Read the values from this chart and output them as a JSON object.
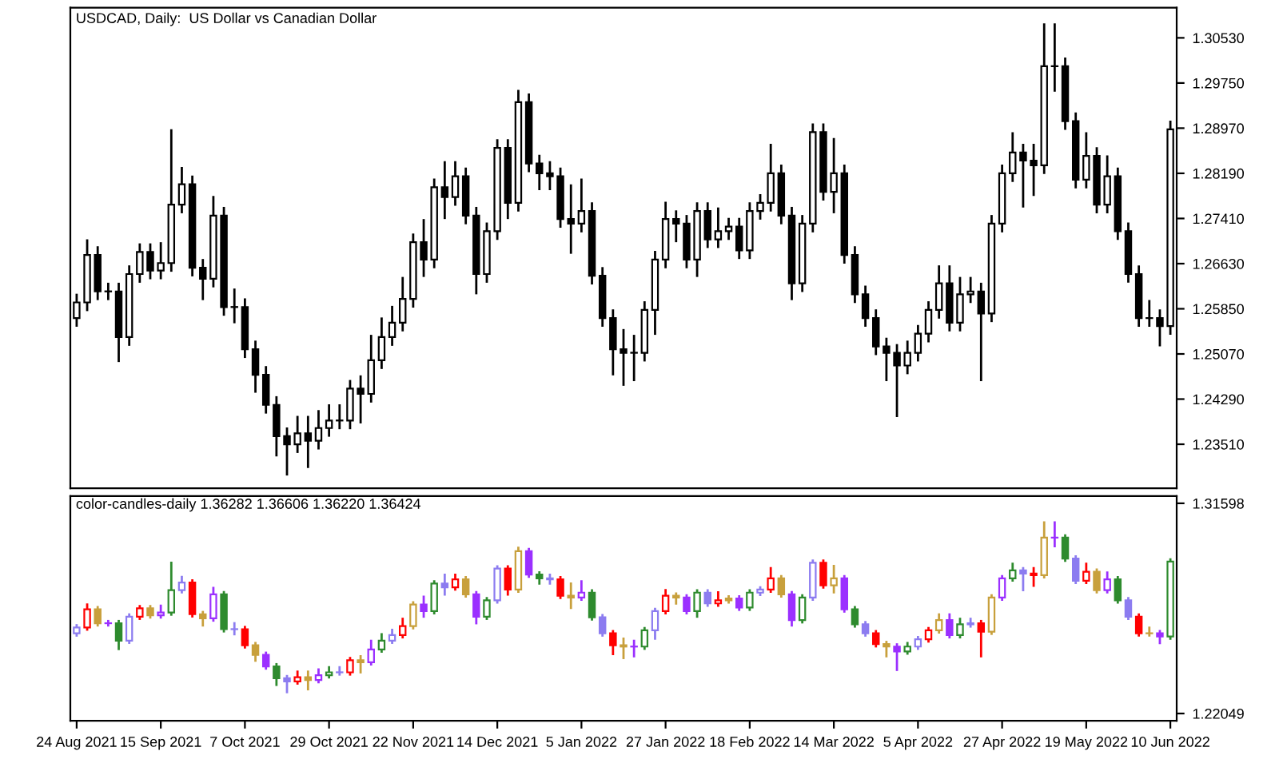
{
  "chart_data": [
    {
      "type": "candlestick",
      "title": "USDCAD, Daily:  US Dollar vs Canadian Dollar",
      "color": "#000000",
      "tick_labels": "y",
      "ohlc": [
        [
          1.2569,
          1.2611,
          1.2554,
          1.2596
        ],
        [
          1.2596,
          1.2705,
          1.2581,
          1.2678
        ],
        [
          1.2678,
          1.2693,
          1.26,
          1.2615
        ],
        [
          1.2615,
          1.263,
          1.26,
          1.2615
        ],
        [
          1.2615,
          1.263,
          1.2493,
          1.2536
        ],
        [
          1.2536,
          1.266,
          1.2521,
          1.2645
        ],
        [
          1.2645,
          1.2698,
          1.263,
          1.2683
        ],
        [
          1.2683,
          1.2698,
          1.2636,
          1.2651
        ],
        [
          1.2651,
          1.27,
          1.2636,
          1.2664
        ],
        [
          1.2664,
          1.2895,
          1.2649,
          1.2765
        ],
        [
          1.2765,
          1.283,
          1.275,
          1.28
        ],
        [
          1.28,
          1.2815,
          1.2641,
          1.2656
        ],
        [
          1.2656,
          1.2671,
          1.26,
          1.2637
        ],
        [
          1.2637,
          1.278,
          1.2622,
          1.2746
        ],
        [
          1.2746,
          1.2761,
          1.2573,
          1.2588
        ],
        [
          1.2588,
          1.262,
          1.256,
          1.2588
        ],
        [
          1.2588,
          1.2603,
          1.25,
          1.2515
        ],
        [
          1.2515,
          1.253,
          1.244,
          1.2471
        ],
        [
          1.2471,
          1.2486,
          1.2404,
          1.2419
        ],
        [
          1.2419,
          1.2434,
          1.233,
          1.2365
        ],
        [
          1.2365,
          1.238,
          1.2297,
          1.2351
        ],
        [
          1.2351,
          1.24,
          1.2336,
          1.237
        ],
        [
          1.237,
          1.24,
          1.231,
          1.2357
        ],
        [
          1.2357,
          1.241,
          1.2342,
          1.2379
        ],
        [
          1.2379,
          1.242,
          1.2364,
          1.2392
        ],
        [
          1.2392,
          1.242,
          1.2377,
          1.2392
        ],
        [
          1.2392,
          1.2462,
          1.2377,
          1.2447
        ],
        [
          1.2447,
          1.247,
          1.2387,
          1.2438
        ],
        [
          1.2438,
          1.254,
          1.2423,
          1.2496
        ],
        [
          1.2496,
          1.257,
          1.2481,
          1.2536
        ],
        [
          1.2536,
          1.259,
          1.2521,
          1.2561
        ],
        [
          1.2561,
          1.264,
          1.2546,
          1.2602
        ],
        [
          1.2602,
          1.2715,
          1.2587,
          1.27
        ],
        [
          1.27,
          1.274,
          1.264,
          1.267
        ],
        [
          1.267,
          1.281,
          1.2655,
          1.2795
        ],
        [
          1.2795,
          1.284,
          1.274,
          1.2778
        ],
        [
          1.2778,
          1.284,
          1.2763,
          1.2814
        ],
        [
          1.2814,
          1.2829,
          1.2731,
          1.2746
        ],
        [
          1.2746,
          1.2761,
          1.261,
          1.2645
        ],
        [
          1.2645,
          1.2734,
          1.263,
          1.2719
        ],
        [
          1.2719,
          1.2878,
          1.2704,
          1.2863
        ],
        [
          1.2863,
          1.2878,
          1.274,
          1.2768
        ],
        [
          1.2768,
          1.2963,
          1.2753,
          1.2942
        ],
        [
          1.2942,
          1.2957,
          1.2821,
          1.2836
        ],
        [
          1.2836,
          1.2851,
          1.279,
          1.2819
        ],
        [
          1.2819,
          1.284,
          1.279,
          1.2814
        ],
        [
          1.2814,
          1.2829,
          1.2725,
          1.274
        ],
        [
          1.274,
          1.28,
          1.268,
          1.2732
        ],
        [
          1.2732,
          1.281,
          1.2717,
          1.2754
        ],
        [
          1.2754,
          1.2769,
          1.2627,
          1.2642
        ],
        [
          1.2642,
          1.2657,
          1.2554,
          1.2569
        ],
        [
          1.2569,
          1.2584,
          1.247,
          1.2515
        ],
        [
          1.2515,
          1.255,
          1.2452,
          1.2509
        ],
        [
          1.2509,
          1.254,
          1.246,
          1.2509
        ],
        [
          1.2509,
          1.2598,
          1.2494,
          1.2583
        ],
        [
          1.2583,
          1.2685,
          1.254,
          1.267
        ],
        [
          1.267,
          1.277,
          1.2655,
          1.274
        ],
        [
          1.274,
          1.2755,
          1.27,
          1.2732
        ],
        [
          1.2732,
          1.2747,
          1.2655,
          1.267
        ],
        [
          1.267,
          1.2769,
          1.264,
          1.2754
        ],
        [
          1.2754,
          1.2769,
          1.269,
          1.2705
        ],
        [
          1.2705,
          1.276,
          1.269,
          1.2719
        ],
        [
          1.2719,
          1.2742,
          1.2704,
          1.2727
        ],
        [
          1.2727,
          1.2742,
          1.2671,
          1.2686
        ],
        [
          1.2686,
          1.2769,
          1.2671,
          1.2754
        ],
        [
          1.2754,
          1.2783,
          1.2739,
          1.2768
        ],
        [
          1.2768,
          1.287,
          1.2753,
          1.2819
        ],
        [
          1.2819,
          1.2834,
          1.2731,
          1.2746
        ],
        [
          1.2746,
          1.2761,
          1.26,
          1.2629
        ],
        [
          1.2629,
          1.2747,
          1.2614,
          1.2732
        ],
        [
          1.2732,
          1.2905,
          1.2717,
          1.289
        ],
        [
          1.289,
          1.2905,
          1.2772,
          1.2787
        ],
        [
          1.2787,
          1.288,
          1.275,
          1.2819
        ],
        [
          1.2819,
          1.2834,
          1.2663,
          1.2678
        ],
        [
          1.2678,
          1.2693,
          1.2595,
          1.261
        ],
        [
          1.261,
          1.2625,
          1.2554,
          1.2569
        ],
        [
          1.2569,
          1.2584,
          1.2505,
          1.252
        ],
        [
          1.252,
          1.2535,
          1.246,
          1.2509
        ],
        [
          1.2509,
          1.2524,
          1.2398,
          1.2487
        ],
        [
          1.2487,
          1.253,
          1.2472,
          1.2509
        ],
        [
          1.2509,
          1.2557,
          1.2494,
          1.2542
        ],
        [
          1.2542,
          1.2598,
          1.2527,
          1.2583
        ],
        [
          1.2583,
          1.266,
          1.2568,
          1.2629
        ],
        [
          1.2629,
          1.266,
          1.2546,
          1.2561
        ],
        [
          1.2561,
          1.264,
          1.2546,
          1.261
        ],
        [
          1.261,
          1.264,
          1.2595,
          1.2615
        ],
        [
          1.2615,
          1.263,
          1.246,
          1.2577
        ],
        [
          1.2577,
          1.2747,
          1.2562,
          1.2732
        ],
        [
          1.2732,
          1.2834,
          1.2717,
          1.2819
        ],
        [
          1.2819,
          1.289,
          1.2804,
          1.2855
        ],
        [
          1.2855,
          1.287,
          1.276,
          1.2841
        ],
        [
          1.2841,
          1.287,
          1.278,
          1.2833
        ],
        [
          1.2833,
          1.3078,
          1.2818,
          1.3004
        ],
        [
          1.3004,
          1.3078,
          1.296,
          1.3004
        ],
        [
          1.3004,
          1.3019,
          1.2894,
          1.2909
        ],
        [
          1.2909,
          1.2924,
          1.2793,
          1.2808
        ],
        [
          1.2808,
          1.289,
          1.2793,
          1.2849
        ],
        [
          1.2849,
          1.2864,
          1.275,
          1.2765
        ],
        [
          1.2765,
          1.285,
          1.275,
          1.2814
        ],
        [
          1.2814,
          1.2829,
          1.2704,
          1.2719
        ],
        [
          1.2719,
          1.2734,
          1.263,
          1.2645
        ],
        [
          1.2645,
          1.266,
          1.2554,
          1.2569
        ],
        [
          1.2569,
          1.26,
          1.2554,
          1.2569
        ],
        [
          1.2569,
          1.2584,
          1.252,
          1.2555
        ],
        [
          1.2555,
          1.291,
          1.254,
          1.2895
        ]
      ],
      "ylim": [
        1.2275,
        1.3105
      ],
      "yticks": [
        {
          "value": 1.2351,
          "label": "1.23510"
        },
        {
          "value": 1.2429,
          "label": "1.24290"
        },
        {
          "value": 1.2507,
          "label": "1.25070"
        },
        {
          "value": 1.2585,
          "label": "1.25850"
        },
        {
          "value": 1.2663,
          "label": "1.26630"
        },
        {
          "value": 1.2741,
          "label": "1.27410"
        },
        {
          "value": 1.2819,
          "label": "1.28190"
        },
        {
          "value": 1.2897,
          "label": "1.28970"
        },
        {
          "value": 1.2975,
          "label": "1.29750"
        },
        {
          "value": 1.3053,
          "label": "1.30530"
        }
      ]
    },
    {
      "type": "candlestick",
      "title": "color-candles-daily 1.36282 1.36606 1.36220 1.36424",
      "categories": [
        "24 Aug 2021",
        null,
        null,
        null,
        null,
        null,
        null,
        null,
        "15 Sep 2021",
        null,
        null,
        null,
        null,
        null,
        null,
        null,
        "7 Oct 2021",
        null,
        null,
        null,
        null,
        null,
        null,
        null,
        "29 Oct 2021",
        null,
        null,
        null,
        null,
        null,
        null,
        null,
        "22 Nov 2021",
        null,
        null,
        null,
        null,
        null,
        null,
        null,
        "14 Dec 2021",
        null,
        null,
        null,
        null,
        null,
        null,
        null,
        "5 Jan 2022",
        null,
        null,
        null,
        null,
        null,
        null,
        null,
        "27 Jan 2022",
        null,
        null,
        null,
        null,
        null,
        null,
        null,
        "18 Feb 2022",
        null,
        null,
        null,
        null,
        null,
        null,
        null,
        "14 Mar 2022",
        null,
        null,
        null,
        null,
        null,
        null,
        null,
        "5 Apr 2022",
        null,
        null,
        null,
        null,
        null,
        null,
        null,
        "27 Apr 2022",
        null,
        null,
        null,
        null,
        null,
        null,
        null,
        "19 May 2022",
        null,
        null,
        null,
        null,
        null,
        null,
        null,
        "10 Jun 2022"
      ],
      "ohlc": [
        [
          1.2569,
          1.2611,
          1.2554,
          1.2596
        ],
        [
          1.2596,
          1.2705,
          1.2581,
          1.2678
        ],
        [
          1.2678,
          1.2693,
          1.26,
          1.2615
        ],
        [
          1.2615,
          1.263,
          1.26,
          1.2615
        ],
        [
          1.2615,
          1.263,
          1.2493,
          1.2536
        ],
        [
          1.2536,
          1.266,
          1.2521,
          1.2645
        ],
        [
          1.2645,
          1.2698,
          1.263,
          1.2683
        ],
        [
          1.2683,
          1.2698,
          1.2636,
          1.2651
        ],
        [
          1.2651,
          1.27,
          1.2636,
          1.2664
        ],
        [
          1.2664,
          1.2895,
          1.2649,
          1.2765
        ],
        [
          1.2765,
          1.283,
          1.275,
          1.28
        ],
        [
          1.28,
          1.2815,
          1.2641,
          1.2656
        ],
        [
          1.2656,
          1.2671,
          1.26,
          1.2637
        ],
        [
          1.2637,
          1.278,
          1.2622,
          1.2746
        ],
        [
          1.2746,
          1.2761,
          1.2573,
          1.2588
        ],
        [
          1.2588,
          1.262,
          1.256,
          1.2588
        ],
        [
          1.2588,
          1.2603,
          1.25,
          1.2515
        ],
        [
          1.2515,
          1.253,
          1.244,
          1.2471
        ],
        [
          1.2471,
          1.2486,
          1.2404,
          1.2419
        ],
        [
          1.2419,
          1.2434,
          1.233,
          1.2365
        ],
        [
          1.2365,
          1.238,
          1.2297,
          1.2351
        ],
        [
          1.2351,
          1.24,
          1.2336,
          1.237
        ],
        [
          1.237,
          1.24,
          1.231,
          1.2357
        ],
        [
          1.2357,
          1.241,
          1.2342,
          1.2379
        ],
        [
          1.2379,
          1.242,
          1.2364,
          1.2392
        ],
        [
          1.2392,
          1.242,
          1.2377,
          1.2392
        ],
        [
          1.2392,
          1.2462,
          1.2377,
          1.2447
        ],
        [
          1.2447,
          1.247,
          1.2387,
          1.2438
        ],
        [
          1.2438,
          1.254,
          1.2423,
          1.2496
        ],
        [
          1.2496,
          1.257,
          1.2481,
          1.2536
        ],
        [
          1.2536,
          1.259,
          1.2521,
          1.2561
        ],
        [
          1.2561,
          1.264,
          1.2546,
          1.2602
        ],
        [
          1.2602,
          1.2715,
          1.2587,
          1.27
        ],
        [
          1.27,
          1.274,
          1.264,
          1.267
        ],
        [
          1.267,
          1.281,
          1.2655,
          1.2795
        ],
        [
          1.2795,
          1.284,
          1.274,
          1.2778
        ],
        [
          1.2778,
          1.284,
          1.2763,
          1.2814
        ],
        [
          1.2814,
          1.2829,
          1.2731,
          1.2746
        ],
        [
          1.2746,
          1.2761,
          1.261,
          1.2645
        ],
        [
          1.2645,
          1.2734,
          1.263,
          1.2719
        ],
        [
          1.2719,
          1.2878,
          1.2704,
          1.2863
        ],
        [
          1.2863,
          1.2878,
          1.274,
          1.2768
        ],
        [
          1.2768,
          1.2963,
          1.2753,
          1.2942
        ],
        [
          1.2942,
          1.2957,
          1.2821,
          1.2836
        ],
        [
          1.2836,
          1.2851,
          1.279,
          1.2819
        ],
        [
          1.2819,
          1.284,
          1.279,
          1.2814
        ],
        [
          1.2814,
          1.2829,
          1.2725,
          1.274
        ],
        [
          1.274,
          1.28,
          1.268,
          1.2732
        ],
        [
          1.2732,
          1.281,
          1.2717,
          1.2754
        ],
        [
          1.2754,
          1.2769,
          1.2627,
          1.2642
        ],
        [
          1.2642,
          1.2657,
          1.2554,
          1.2569
        ],
        [
          1.2569,
          1.2584,
          1.247,
          1.2515
        ],
        [
          1.2515,
          1.255,
          1.2452,
          1.2509
        ],
        [
          1.2509,
          1.254,
          1.246,
          1.2509
        ],
        [
          1.2509,
          1.2598,
          1.2494,
          1.2583
        ],
        [
          1.2583,
          1.2685,
          1.254,
          1.267
        ],
        [
          1.267,
          1.277,
          1.2655,
          1.274
        ],
        [
          1.274,
          1.2755,
          1.27,
          1.2732
        ],
        [
          1.2732,
          1.2747,
          1.2655,
          1.267
        ],
        [
          1.267,
          1.2769,
          1.264,
          1.2754
        ],
        [
          1.2754,
          1.2769,
          1.269,
          1.2705
        ],
        [
          1.2705,
          1.276,
          1.269,
          1.2719
        ],
        [
          1.2719,
          1.2742,
          1.2704,
          1.2727
        ],
        [
          1.2727,
          1.2742,
          1.2671,
          1.2686
        ],
        [
          1.2686,
          1.2769,
          1.2671,
          1.2754
        ],
        [
          1.2754,
          1.2783,
          1.2739,
          1.2768
        ],
        [
          1.2768,
          1.287,
          1.2753,
          1.2819
        ],
        [
          1.2819,
          1.2834,
          1.2731,
          1.2746
        ],
        [
          1.2746,
          1.2761,
          1.26,
          1.2629
        ],
        [
          1.2629,
          1.2747,
          1.2614,
          1.2732
        ],
        [
          1.2732,
          1.2905,
          1.2717,
          1.289
        ],
        [
          1.289,
          1.2905,
          1.2772,
          1.2787
        ],
        [
          1.2787,
          1.288,
          1.275,
          1.2819
        ],
        [
          1.2819,
          1.2834,
          1.2663,
          1.2678
        ],
        [
          1.2678,
          1.2693,
          1.2595,
          1.261
        ],
        [
          1.261,
          1.2625,
          1.2554,
          1.2569
        ],
        [
          1.2569,
          1.2584,
          1.2505,
          1.252
        ],
        [
          1.252,
          1.2535,
          1.246,
          1.2509
        ],
        [
          1.2509,
          1.2524,
          1.2398,
          1.2487
        ],
        [
          1.2487,
          1.253,
          1.2472,
          1.2509
        ],
        [
          1.2509,
          1.2557,
          1.2494,
          1.2542
        ],
        [
          1.2542,
          1.2598,
          1.2527,
          1.2583
        ],
        [
          1.2583,
          1.266,
          1.2568,
          1.2629
        ],
        [
          1.2629,
          1.266,
          1.2546,
          1.2561
        ],
        [
          1.2561,
          1.264,
          1.2546,
          1.261
        ],
        [
          1.261,
          1.264,
          1.2595,
          1.2615
        ],
        [
          1.2615,
          1.263,
          1.246,
          1.2577
        ],
        [
          1.2577,
          1.2747,
          1.2562,
          1.2732
        ],
        [
          1.2732,
          1.2834,
          1.2717,
          1.2819
        ],
        [
          1.2819,
          1.289,
          1.2804,
          1.2855
        ],
        [
          1.2855,
          1.287,
          1.276,
          1.2841
        ],
        [
          1.2841,
          1.287,
          1.278,
          1.2833
        ],
        [
          1.2833,
          1.3078,
          1.2818,
          1.3004
        ],
        [
          1.3004,
          1.3078,
          1.296,
          1.3004
        ],
        [
          1.3004,
          1.3019,
          1.2894,
          1.2909
        ],
        [
          1.2909,
          1.2924,
          1.2793,
          1.2808
        ],
        [
          1.2808,
          1.289,
          1.2793,
          1.2849
        ],
        [
          1.2849,
          1.2864,
          1.275,
          1.2765
        ],
        [
          1.2765,
          1.285,
          1.275,
          1.2814
        ],
        [
          1.2814,
          1.2829,
          1.2704,
          1.2719
        ],
        [
          1.2719,
          1.2734,
          1.263,
          1.2645
        ],
        [
          1.2645,
          1.266,
          1.2554,
          1.2569
        ],
        [
          1.2569,
          1.26,
          1.2554,
          1.2569
        ],
        [
          1.2569,
          1.2584,
          1.252,
          1.2555
        ],
        [
          1.2555,
          1.291,
          1.254,
          1.2895
        ]
      ],
      "colors": [
        "#8c7cf0",
        "#ff0000",
        "#c8a03c",
        "#9b30ff",
        "#2e8b2e",
        "#8c7cf0",
        "#ff0000",
        "#c8a03c",
        "#9b30ff",
        "#2e8b2e",
        "#8c7cf0",
        "#ff0000",
        "#c8a03c",
        "#9b30ff",
        "#2e8b2e",
        "#8c7cf0",
        "#ff0000",
        "#c8a03c",
        "#9b30ff",
        "#2e8b2e",
        "#8c7cf0",
        "#ff0000",
        "#c8a03c",
        "#9b30ff",
        "#2e8b2e",
        "#8c7cf0",
        "#ff0000",
        "#c8a03c",
        "#9b30ff",
        "#2e8b2e",
        "#8c7cf0",
        "#ff0000",
        "#c8a03c",
        "#9b30ff",
        "#2e8b2e",
        "#8c7cf0",
        "#ff0000",
        "#c8a03c",
        "#9b30ff",
        "#2e8b2e",
        "#8c7cf0",
        "#ff0000",
        "#c8a03c",
        "#9b30ff",
        "#2e8b2e",
        "#8c7cf0",
        "#ff0000",
        "#c8a03c",
        "#9b30ff",
        "#2e8b2e",
        "#8c7cf0",
        "#ff0000",
        "#c8a03c",
        "#9b30ff",
        "#2e8b2e",
        "#8c7cf0",
        "#ff0000",
        "#c8a03c",
        "#9b30ff",
        "#2e8b2e",
        "#8c7cf0",
        "#ff0000",
        "#c8a03c",
        "#9b30ff",
        "#2e8b2e",
        "#8c7cf0",
        "#ff0000",
        "#c8a03c",
        "#9b30ff",
        "#2e8b2e",
        "#8c7cf0",
        "#ff0000",
        "#c8a03c",
        "#9b30ff",
        "#2e8b2e",
        "#8c7cf0",
        "#ff0000",
        "#c8a03c",
        "#9b30ff",
        "#2e8b2e",
        "#8c7cf0",
        "#ff0000",
        "#c8a03c",
        "#9b30ff",
        "#2e8b2e",
        "#8c7cf0",
        "#ff0000",
        "#c8a03c",
        "#9b30ff",
        "#2e8b2e",
        "#8c7cf0",
        "#ff0000",
        "#c8a03c",
        "#9b30ff",
        "#2e8b2e",
        "#8c7cf0",
        "#ff0000",
        "#c8a03c",
        "#9b30ff",
        "#2e8b2e",
        "#8c7cf0",
        "#ff0000",
        "#c8a03c",
        "#9b30ff",
        "#2e8b2e"
      ],
      "ylim": [
        1.2172,
        1.3193
      ],
      "yticks": [
        {
          "value": 1.22049,
          "label": "1.22049"
        },
        {
          "value": 1.31598,
          "label": "1.31598"
        }
      ]
    }
  ]
}
